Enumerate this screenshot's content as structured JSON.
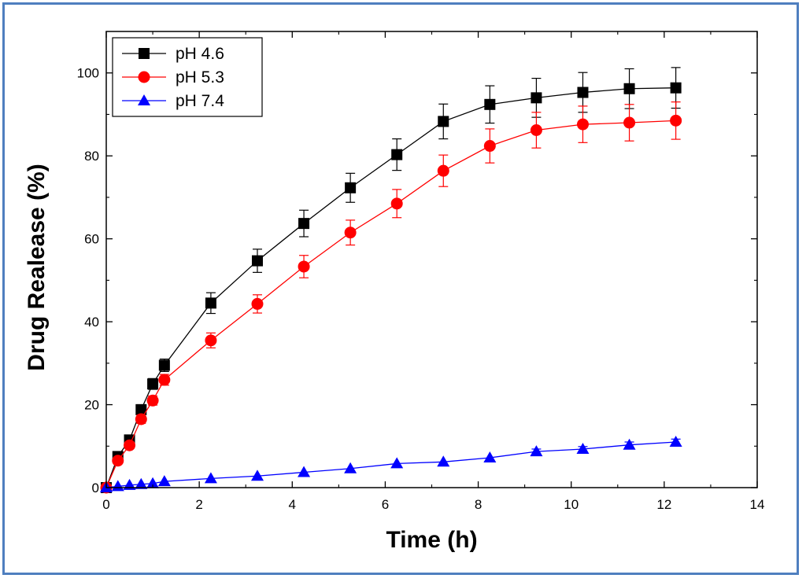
{
  "chart_data": {
    "type": "line",
    "title": "",
    "xlabel": "Time (h)",
    "ylabel": "Drug Realease (%)",
    "xlim": [
      0,
      14
    ],
    "ylim": [
      0,
      110
    ],
    "xticks": [
      0,
      2,
      4,
      6,
      8,
      10,
      12,
      14
    ],
    "yticks": [
      0,
      20,
      40,
      60,
      80,
      100
    ],
    "grid": false,
    "legend_position": "top-left",
    "series": [
      {
        "name": "pH 4.6",
        "color": "#000000",
        "marker": "square",
        "x": [
          0,
          0.25,
          0.5,
          0.75,
          1.0,
          1.25,
          2.25,
          3.25,
          4.25,
          5.25,
          6.25,
          7.25,
          8.25,
          9.25,
          10.25,
          11.25,
          12.25
        ],
        "y": [
          0,
          7.5,
          11.5,
          18.8,
          25.0,
          29.5,
          44.5,
          54.7,
          63.7,
          72.3,
          80.3,
          88.3,
          92.4,
          94.0,
          95.3,
          96.2,
          96.4
        ],
        "err": [
          0,
          0.8,
          1.0,
          1.2,
          1.3,
          1.5,
          2.5,
          2.8,
          3.2,
          3.5,
          3.8,
          4.2,
          4.5,
          4.7,
          4.8,
          4.8,
          4.9
        ]
      },
      {
        "name": "pH 5.3",
        "color": "#ff0000",
        "marker": "circle",
        "x": [
          0,
          0.25,
          0.5,
          0.75,
          1.0,
          1.25,
          2.25,
          3.25,
          4.25,
          5.25,
          6.25,
          7.25,
          8.25,
          9.25,
          10.25,
          11.25,
          12.25
        ],
        "y": [
          0,
          6.5,
          10.2,
          16.5,
          21.0,
          26.0,
          35.5,
          44.3,
          53.3,
          61.5,
          68.5,
          76.4,
          82.4,
          86.2,
          87.6,
          88.0,
          88.5
        ],
        "err": [
          0,
          0.6,
          0.8,
          1.0,
          1.1,
          1.3,
          1.8,
          2.2,
          2.7,
          3.0,
          3.4,
          3.8,
          4.1,
          4.3,
          4.4,
          4.4,
          4.5
        ]
      },
      {
        "name": "pH 7.4",
        "color": "#0000ff",
        "marker": "triangle",
        "x": [
          0,
          0.25,
          0.5,
          0.75,
          1.0,
          1.25,
          2.25,
          3.25,
          4.25,
          5.25,
          6.25,
          7.25,
          8.25,
          9.25,
          10.25,
          11.25,
          12.25
        ],
        "y": [
          0,
          0.3,
          0.6,
          0.8,
          1.0,
          1.5,
          2.2,
          2.8,
          3.7,
          4.6,
          5.8,
          6.2,
          7.2,
          8.7,
          9.3,
          10.3,
          11.0
        ],
        "err": [
          0,
          0.1,
          0.1,
          0.1,
          0.1,
          0.2,
          0.2,
          0.3,
          0.3,
          0.4,
          0.4,
          0.5,
          0.5,
          0.6,
          0.6,
          0.7,
          0.7
        ]
      }
    ]
  }
}
